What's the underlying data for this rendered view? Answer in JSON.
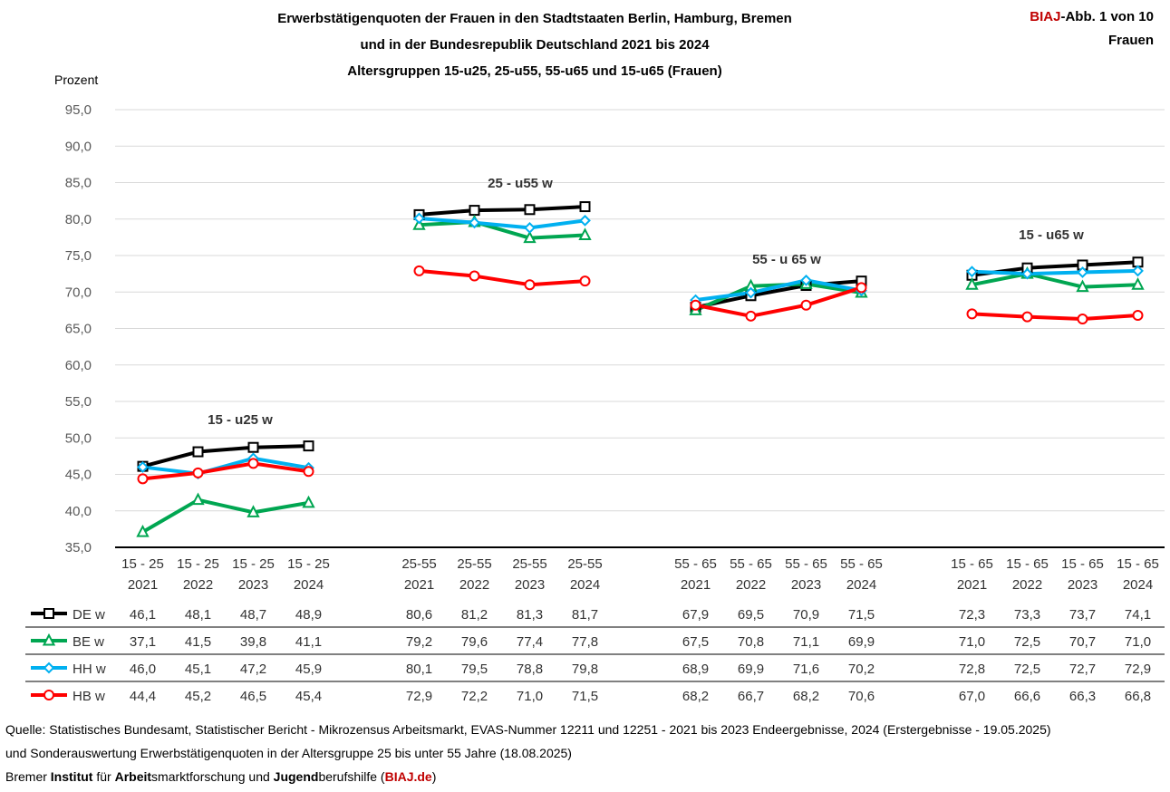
{
  "title_lines": [
    "Erwerbstätigenquoten der Frauen in den Stadtstaaten Berlin, Hamburg, Bremen",
    "und in der Bundesrepublik Deutschland 2021 bis 2024",
    "Altersgruppen 15-u25, 25-u55, 55-u65 und 15-u65 (Frauen)"
  ],
  "corner": {
    "brand": "BIAJ",
    "rest": "-Abb. 1 von 10",
    "line2": "Frauen"
  },
  "chart_data": {
    "type": "line",
    "ylabel": "Prozent",
    "ylim": [
      35,
      95
    ],
    "yticks": [
      "35,0",
      "40,0",
      "45,0",
      "50,0",
      "55,0",
      "60,0",
      "65,0",
      "70,0",
      "75,0",
      "80,0",
      "85,0",
      "90,0",
      "95,0"
    ],
    "groups": [
      {
        "label": "15 - u25 w",
        "cat": "15 - 25",
        "years": [
          "2021",
          "2022",
          "2023",
          "2024"
        ]
      },
      {
        "label": "25 - u55 w",
        "cat": "25-55",
        "years": [
          "2021",
          "2022",
          "2023",
          "2024"
        ]
      },
      {
        "label": "55 - u 65 w",
        "cat": "55 - 65",
        "years": [
          "2021",
          "2022",
          "2023",
          "2024"
        ]
      },
      {
        "label": "15 -  u65 w",
        "cat": "15 - 65",
        "years": [
          "2021",
          "2022",
          "2023",
          "2024"
        ]
      }
    ],
    "series": [
      {
        "name": "DE w",
        "color": "#000000",
        "marker": "square",
        "values": [
          [
            46.1,
            48.1,
            48.7,
            48.9
          ],
          [
            80.6,
            81.2,
            81.3,
            81.7
          ],
          [
            67.9,
            69.5,
            70.9,
            71.5
          ],
          [
            72.3,
            73.3,
            73.7,
            74.1
          ]
        ],
        "labels": [
          [
            "46,1",
            "48,1",
            "48,7",
            "48,9"
          ],
          [
            "80,6",
            "81,2",
            "81,3",
            "81,7"
          ],
          [
            "67,9",
            "69,5",
            "70,9",
            "71,5"
          ],
          [
            "72,3",
            "73,3",
            "73,7",
            "74,1"
          ]
        ]
      },
      {
        "name": "BE w",
        "color": "#00a651",
        "marker": "triangle",
        "values": [
          [
            37.1,
            41.5,
            39.8,
            41.1
          ],
          [
            79.2,
            79.6,
            77.4,
            77.8
          ],
          [
            67.5,
            70.8,
            71.1,
            69.9
          ],
          [
            71.0,
            72.5,
            70.7,
            71.0
          ]
        ],
        "labels": [
          [
            "37,1",
            "41,5",
            "39,8",
            "41,1"
          ],
          [
            "79,2",
            "79,6",
            "77,4",
            "77,8"
          ],
          [
            "67,5",
            "70,8",
            "71,1",
            "69,9"
          ],
          [
            "71,0",
            "72,5",
            "70,7",
            "71,0"
          ]
        ]
      },
      {
        "name": "HH w",
        "color": "#00b0f0",
        "marker": "diamond",
        "values": [
          [
            46.0,
            45.1,
            47.2,
            45.9
          ],
          [
            80.1,
            79.5,
            78.8,
            79.8
          ],
          [
            68.9,
            69.9,
            71.6,
            70.2
          ],
          [
            72.8,
            72.5,
            72.7,
            72.9
          ]
        ],
        "labels": [
          [
            "46,0",
            "45,1",
            "47,2",
            "45,9"
          ],
          [
            "80,1",
            "79,5",
            "78,8",
            "79,8"
          ],
          [
            "68,9",
            "69,9",
            "71,6",
            "70,2"
          ],
          [
            "72,8",
            "72,5",
            "72,7",
            "72,9"
          ]
        ]
      },
      {
        "name": "HB w",
        "color": "#ff0000",
        "marker": "circle",
        "values": [
          [
            44.4,
            45.2,
            46.5,
            45.4
          ],
          [
            72.9,
            72.2,
            71.0,
            71.5
          ],
          [
            68.2,
            66.7,
            68.2,
            70.6
          ],
          [
            67.0,
            66.6,
            66.3,
            66.8
          ]
        ],
        "labels": [
          [
            "44,4",
            "45,2",
            "46,5",
            "45,4"
          ],
          [
            "72,9",
            "72,2",
            "71,0",
            "71,5"
          ],
          [
            "68,2",
            "66,7",
            "68,2",
            "70,6"
          ],
          [
            "67,0",
            "66,6",
            "66,3",
            "66,8"
          ]
        ]
      }
    ]
  },
  "source": {
    "line1": "Quelle: Statistisches Bundesamt, Statistischer Bericht - Mikrozensus Arbeitsmarkt, EVAS-Nummer 12211 und 12251 - 2021 bis 2023 Endeergebnisse, 2024 (Erstergebnisse - 19.05.2025)",
    "line2": "und Sonderauswertung Erwerbstätigenquoten in der Altersgruppe 25 bis unter 55 Jahre (18.08.2025)",
    "l3_a": "Bremer ",
    "l3_b": "Institut",
    "l3_c": " für ",
    "l3_d": "Arbeit",
    "l3_e": "smarktforschung und ",
    "l3_f": "Jugend",
    "l3_g": "berufshilfe (",
    "l3_h": "BIAJ.de",
    "l3_i": ")"
  }
}
